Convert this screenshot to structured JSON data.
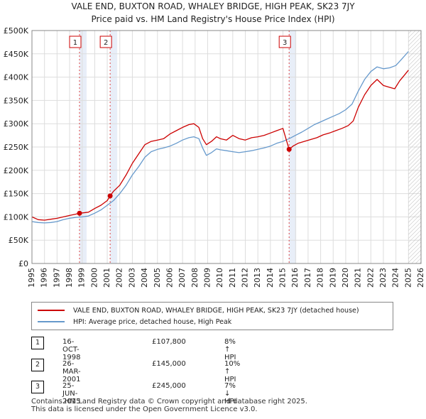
{
  "chart_data": {
    "type": "line",
    "title": "VALE END, BUXTON ROAD, WHALEY BRIDGE, HIGH PEAK, SK23 7JY",
    "subtitle": "Price paid vs. HM Land Registry's House Price Index (HPI)",
    "ytick_labels": [
      "£0",
      "£50K",
      "£100K",
      "£150K",
      "£200K",
      "£250K",
      "£300K",
      "£350K",
      "£400K",
      "£450K",
      "£500K"
    ],
    "ytick_values": [
      0,
      50000,
      100000,
      150000,
      200000,
      250000,
      300000,
      350000,
      400000,
      450000,
      500000
    ],
    "xtick_labels": [
      "1995",
      "1996",
      "1997",
      "1998",
      "1999",
      "2000",
      "2001",
      "2002",
      "2003",
      "2004",
      "2005",
      "2006",
      "2007",
      "2008",
      "2009",
      "2010",
      "2011",
      "2012",
      "2013",
      "2014",
      "2015",
      "2016",
      "2017",
      "2018",
      "2019",
      "2020",
      "2021",
      "2022",
      "2023",
      "2024",
      "2025",
      "2026"
    ],
    "xlim": [
      1995,
      2026
    ],
    "ylim": [
      0,
      500000
    ],
    "series": [
      {
        "name": "VALE END, BUXTON ROAD, WHALEY BRIDGE, HIGH PEAK, SK23 7JY (detached house)",
        "color": "#cc0000",
        "x": [
          1995.0,
          1995.5,
          1996.0,
          1996.5,
          1997.0,
          1997.5,
          1998.0,
          1998.5,
          1998.79,
          1999.5,
          2000.0,
          2000.5,
          2001.0,
          2001.23,
          2001.5,
          2002.0,
          2002.5,
          2003.0,
          2003.5,
          2004.0,
          2004.5,
          2005.0,
          2005.5,
          2006.0,
          2006.5,
          2007.0,
          2007.5,
          2007.9,
          2008.3,
          2008.6,
          2008.9,
          2009.3,
          2009.7,
          2010.0,
          2010.5,
          2011.0,
          2011.5,
          2012.0,
          2012.5,
          2013.0,
          2013.5,
          2014.0,
          2014.5,
          2015.0,
          2015.49,
          2015.8,
          2016.2,
          2016.7,
          2017.2,
          2017.7,
          2018.2,
          2018.7,
          2019.2,
          2019.7,
          2020.2,
          2020.6,
          2021.0,
          2021.5,
          2022.0,
          2022.5,
          2023.0,
          2023.5,
          2023.9,
          2024.3,
          2024.7,
          2025.0
        ],
        "values": [
          100000,
          94000,
          93000,
          95000,
          97000,
          100000,
          103000,
          106000,
          107800,
          110000,
          118000,
          125000,
          135000,
          145000,
          155000,
          168000,
          190000,
          215000,
          235000,
          255000,
          262000,
          265000,
          268000,
          278000,
          285000,
          292000,
          298000,
          300000,
          292000,
          268000,
          255000,
          262000,
          272000,
          268000,
          265000,
          275000,
          268000,
          265000,
          270000,
          272000,
          275000,
          280000,
          285000,
          290000,
          245000,
          252000,
          258000,
          262000,
          266000,
          270000,
          276000,
          280000,
          285000,
          290000,
          296000,
          306000,
          335000,
          362000,
          382000,
          395000,
          382000,
          378000,
          375000,
          392000,
          405000,
          415000
        ]
      },
      {
        "name": "HPI: Average price, detached house, High Peak",
        "color": "#6699cc",
        "x": [
          1995.0,
          1995.5,
          1996.0,
          1996.5,
          1997.0,
          1997.5,
          1998.0,
          1998.5,
          1999.0,
          1999.5,
          2000.0,
          2000.5,
          2001.0,
          2001.5,
          2002.0,
          2002.5,
          2003.0,
          2003.5,
          2004.0,
          2004.5,
          2005.0,
          2005.5,
          2006.0,
          2006.5,
          2007.0,
          2007.5,
          2007.9,
          2008.3,
          2008.6,
          2008.9,
          2009.3,
          2009.7,
          2010.0,
          2010.5,
          2011.0,
          2011.5,
          2012.0,
          2012.5,
          2013.0,
          2013.5,
          2014.0,
          2014.5,
          2015.0,
          2015.5,
          2016.0,
          2016.5,
          2017.0,
          2017.5,
          2018.0,
          2018.5,
          2019.0,
          2019.5,
          2020.0,
          2020.5,
          2021.0,
          2021.5,
          2022.0,
          2022.5,
          2023.0,
          2023.5,
          2024.0,
          2024.5,
          2025.0
        ],
        "values": [
          90000,
          88000,
          87000,
          88000,
          90000,
          94000,
          97000,
          99000,
          100000,
          102000,
          108000,
          115000,
          125000,
          135000,
          150000,
          168000,
          190000,
          208000,
          228000,
          240000,
          245000,
          248000,
          252000,
          258000,
          265000,
          270000,
          272000,
          268000,
          248000,
          232000,
          238000,
          246000,
          244000,
          242000,
          240000,
          238000,
          240000,
          242000,
          245000,
          248000,
          252000,
          258000,
          262000,
          268000,
          275000,
          282000,
          290000,
          298000,
          304000,
          310000,
          316000,
          322000,
          330000,
          342000,
          370000,
          395000,
          412000,
          422000,
          418000,
          420000,
          425000,
          440000,
          455000
        ]
      }
    ],
    "sales": [
      {
        "n": "1",
        "x": 1998.79,
        "value": 107800
      },
      {
        "n": "2",
        "x": 2001.23,
        "value": 145000
      },
      {
        "n": "3",
        "x": 2015.49,
        "value": 245000
      }
    ],
    "hatch_from": 2025.0
  },
  "legend": {
    "series0": "VALE END, BUXTON ROAD, WHALEY BRIDGE, HIGH PEAK, SK23 7JY (detached house)",
    "series1": "HPI: Average price, detached house, High Peak"
  },
  "transactions": [
    {
      "n": "1",
      "date": "16-OCT-1998",
      "price": "£107,800",
      "hpi": "8% ↑ HPI"
    },
    {
      "n": "2",
      "date": "26-MAR-2001",
      "price": "£145,000",
      "hpi": "10% ↑ HPI"
    },
    {
      "n": "3",
      "date": "25-JUN-2015",
      "price": "£245,000",
      "hpi": "7% ↓ HPI"
    }
  ],
  "footer": {
    "line1": "Contains HM Land Registry data © Crown copyright and database right 2025.",
    "line2": "This data is licensed under the Open Government Licence v3.0."
  }
}
